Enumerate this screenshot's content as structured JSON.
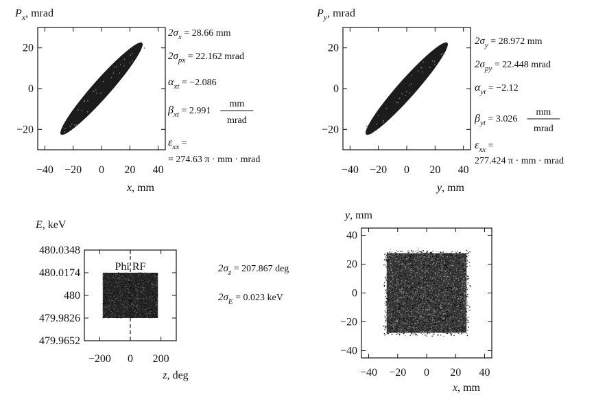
{
  "chart_data": [
    {
      "type": "scatter",
      "id": "px-x",
      "xlabel": "x, mm",
      "ylabel": "Px, mrad",
      "xlim": [
        -45,
        45
      ],
      "ylim": [
        -30,
        30
      ],
      "xticks": [
        "-40",
        "-20",
        "0",
        "20",
        "40"
      ],
      "yticks": [
        "20",
        "0",
        "-20"
      ],
      "distribution": "filled tilted ellipse",
      "extent": {
        "x": [
          -28,
          28
        ],
        "y": [
          -22,
          22
        ]
      },
      "annotations": [
        {
          "sym": "2σ",
          "sub": "x",
          "text": " = 28.66 mm"
        },
        {
          "sym": "2σ",
          "sub": "px",
          "text": " = 22.162 mrad"
        },
        {
          "sym": "α",
          "sub": "xt",
          "text": " = −2.086"
        },
        {
          "sym": "β",
          "sub": "xt",
          "text": " = 2.991",
          "unit_num": "mm",
          "unit_den": "mrad"
        },
        {
          "sym": "ε",
          "sub": "xx",
          "text": " ="
        },
        {
          "text": "= 274.63 π · mm · mrad"
        }
      ]
    },
    {
      "type": "scatter",
      "id": "py-y",
      "xlabel": "y, mm",
      "ylabel": "Py, mrad",
      "xlim": [
        -45,
        45
      ],
      "ylim": [
        -30,
        30
      ],
      "xticks": [
        "-40",
        "-20",
        "0",
        "20",
        "40"
      ],
      "yticks": [
        "20",
        "0",
        "-20"
      ],
      "distribution": "filled tilted ellipse",
      "extent": {
        "x": [
          -28,
          28
        ],
        "y": [
          -22,
          22
        ]
      },
      "annotations": [
        {
          "sym": "2σ",
          "sub": "y",
          "text": " = 28.972 mm"
        },
        {
          "sym": "2σ",
          "sub": "py",
          "text": " = 22.448 mrad"
        },
        {
          "sym": "α",
          "sub": "yt",
          "text": " = −2.12"
        },
        {
          "sym": "β",
          "sub": "yt",
          "text": " = 3.026",
          "unit_num": "mm",
          "unit_den": "mrad"
        },
        {
          "sym": "ε",
          "sub": "xx",
          "text": " ="
        },
        {
          "text": "277.424 π · mm · mrad"
        }
      ]
    },
    {
      "type": "scatter",
      "id": "e-z",
      "xlabel": "z, deg",
      "ylabel": "E, keV",
      "xlim": [
        -300,
        300
      ],
      "ylim": [
        479.9652,
        480.0348
      ],
      "xticks": [
        "-200",
        "0",
        "200"
      ],
      "yticks": [
        "480.0348",
        "480.0174",
        "480",
        "479.9826",
        "479.9652"
      ],
      "inner_label": "Phi RF",
      "distribution": "uniform rectangle",
      "extent": {
        "x": [
          -180,
          180
        ],
        "y": [
          479.9826,
          480.0174
        ]
      },
      "annotations": [
        {
          "sym": "2σ",
          "sub": "z",
          "text": " = 207.867 deg"
        },
        {
          "sym": "2σ",
          "sub": "E",
          "text": " = 0.023 keV"
        }
      ]
    },
    {
      "type": "scatter",
      "id": "y-x",
      "xlabel": "x, mm",
      "ylabel": "y, mm",
      "xlim": [
        -45,
        45
      ],
      "ylim": [
        -45,
        45
      ],
      "xticks": [
        "-40",
        "-20",
        "0",
        "20",
        "40"
      ],
      "yticks": [
        "40",
        "20",
        "0",
        "-20",
        "-40"
      ],
      "distribution": "uniform square with soft edges",
      "extent": {
        "x": [
          -29,
          29
        ],
        "y": [
          -29,
          29
        ]
      }
    }
  ]
}
